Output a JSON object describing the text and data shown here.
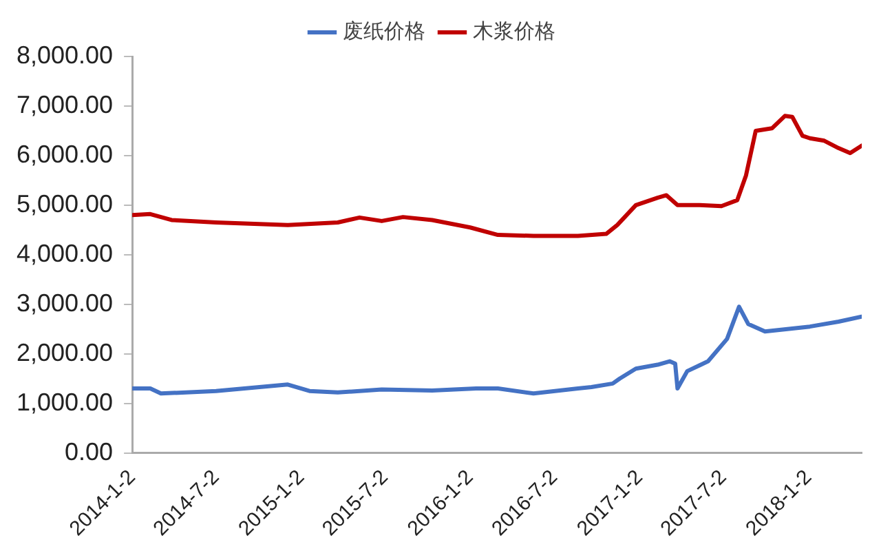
{
  "chart_data": {
    "type": "line",
    "legend": "top",
    "grid": false,
    "marker": "none",
    "line_style": "solid",
    "xlim": [
      "2014-01-02",
      "2018-04-27"
    ],
    "xticks": [
      {
        "value": "2014-01-02",
        "label": "2014-1-2"
      },
      {
        "value": "2014-07-02",
        "label": "2014-7-2"
      },
      {
        "value": "2015-01-02",
        "label": "2015-1-2"
      },
      {
        "value": "2015-07-02",
        "label": "2015-7-2"
      },
      {
        "value": "2016-01-02",
        "label": "2016-1-2"
      },
      {
        "value": "2016-07-02",
        "label": "2016-7-2"
      },
      {
        "value": "2017-01-02",
        "label": "2017-1-2"
      },
      {
        "value": "2017-07-02",
        "label": "2017-7-2"
      },
      {
        "value": "2018-01-02",
        "label": "2018-1-2"
      }
    ],
    "ylim": [
      0,
      8000
    ],
    "yticks": [
      {
        "value": 0,
        "label": "0.00"
      },
      {
        "value": 1000,
        "label": "1,000.00"
      },
      {
        "value": 2000,
        "label": "2,000.00"
      },
      {
        "value": 3000,
        "label": "3,000.00"
      },
      {
        "value": 4000,
        "label": "4,000.00"
      },
      {
        "value": 5000,
        "label": "5,000.00"
      },
      {
        "value": 6000,
        "label": "6,000.00"
      },
      {
        "value": 7000,
        "label": "7,000.00"
      },
      {
        "value": 8000,
        "label": "8,000.00"
      }
    ],
    "series": [
      {
        "name": "废纸价格",
        "color": "#4472c4",
        "x": [
          "2014-01-02",
          "2014-02-10",
          "2014-03-05",
          "2014-07-02",
          "2014-12-04",
          "2015-01-20",
          "2015-03-22",
          "2015-06-25",
          "2015-10-12",
          "2016-01-15",
          "2016-03-02",
          "2016-05-18",
          "2016-08-22",
          "2016-09-20",
          "2016-11-05",
          "2016-11-20",
          "2016-12-25",
          "2017-02-10",
          "2017-03-08",
          "2017-03-20",
          "2017-03-25",
          "2017-04-15",
          "2017-05-30",
          "2017-07-10",
          "2017-08-05",
          "2017-08-25",
          "2017-09-30",
          "2018-01-05",
          "2018-03-08",
          "2018-04-27"
        ],
        "values": [
          1300,
          1300,
          1200,
          1250,
          1380,
          1250,
          1220,
          1280,
          1260,
          1300,
          1300,
          1200,
          1300,
          1330,
          1400,
          1500,
          1700,
          1780,
          1850,
          1800,
          1300,
          1650,
          1850,
          2300,
          2950,
          2600,
          2450,
          2550,
          2650,
          2750
        ]
      },
      {
        "name": "木浆价格",
        "color": "#c00000",
        "x": [
          "2014-01-02",
          "2014-02-10",
          "2014-03-28",
          "2014-07-02",
          "2014-12-04",
          "2015-03-22",
          "2015-05-08",
          "2015-06-25",
          "2015-08-10",
          "2015-10-12",
          "2016-01-02",
          "2016-03-02",
          "2016-05-18",
          "2016-08-22",
          "2016-10-22",
          "2016-11-15",
          "2016-12-25",
          "2017-02-10",
          "2017-03-01",
          "2017-03-25",
          "2017-05-12",
          "2017-06-28",
          "2017-08-01",
          "2017-08-20",
          "2017-09-10",
          "2017-10-15",
          "2017-11-12",
          "2017-11-28",
          "2017-12-20",
          "2018-01-05",
          "2018-02-05",
          "2018-03-08",
          "2018-04-02",
          "2018-04-27"
        ],
        "values": [
          4800,
          4820,
          4700,
          4650,
          4600,
          4650,
          4750,
          4680,
          4760,
          4700,
          4550,
          4400,
          4380,
          4380,
          4420,
          4600,
          5000,
          5150,
          5200,
          5000,
          5000,
          4980,
          5100,
          5600,
          6500,
          6550,
          6800,
          6780,
          6400,
          6350,
          6300,
          6150,
          6050,
          6200
        ]
      }
    ]
  }
}
